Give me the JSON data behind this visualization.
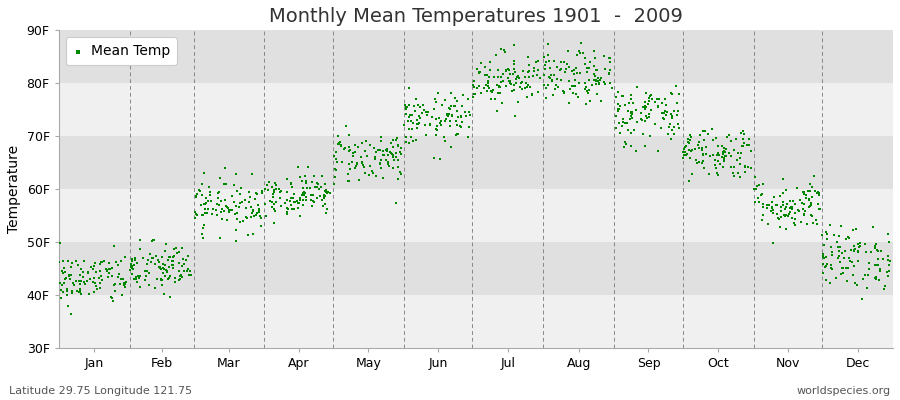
{
  "title": "Monthly Mean Temperatures 1901  -  2009",
  "ylabel": "Temperature",
  "footnote_left": "Latitude 29.75 Longitude 121.75",
  "footnote_right": "worldspecies.org",
  "legend_label": "Mean Temp",
  "ylim": [
    30,
    90
  ],
  "yticks": [
    30,
    40,
    50,
    60,
    70,
    80,
    90
  ],
  "ytick_labels": [
    "30F",
    "40F",
    "50F",
    "60F",
    "70F",
    "80F",
    "90F"
  ],
  "months": [
    "Jan",
    "Feb",
    "Mar",
    "Apr",
    "May",
    "Jun",
    "Jul",
    "Aug",
    "Sep",
    "Oct",
    "Nov",
    "Dec"
  ],
  "month_day_starts": [
    1,
    32,
    60,
    91,
    121,
    152,
    182,
    213,
    244,
    274,
    305,
    335,
    366
  ],
  "monthly_means_F": [
    43,
    45,
    57,
    59,
    66,
    73,
    81,
    81,
    74,
    67,
    57,
    47
  ],
  "monthly_std_F": [
    2.5,
    2.5,
    2.5,
    2.0,
    2.5,
    2.5,
    2.5,
    2.5,
    3.0,
    2.5,
    2.5,
    3.0
  ],
  "n_years": 109,
  "dot_color": "#008800",
  "dot_size": 2,
  "bg_color": "#ffffff",
  "band_color_light": "#f0f0f0",
  "band_color_dark": "#e0e0e0",
  "grid_line_color": "#cccccc",
  "dashed_line_color": "#888888",
  "title_fontsize": 14,
  "axis_fontsize": 10,
  "tick_fontsize": 9,
  "footnote_fontsize": 8
}
